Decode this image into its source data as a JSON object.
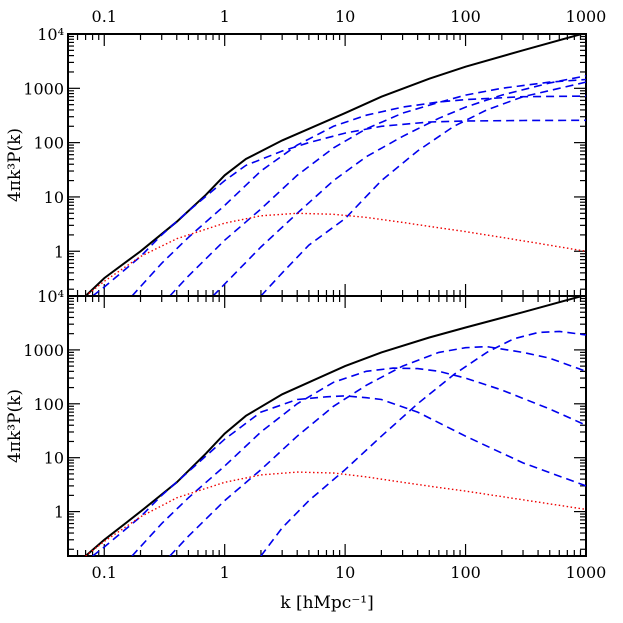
{
  "chart_data": {
    "type": "line",
    "x_scale": "log",
    "y_scale": "log",
    "xlabel": "k [hMpc⁻¹]",
    "xlim": [
      0.05,
      1000
    ],
    "x_tick_labels": [
      {
        "v": 0.1,
        "t": "0.1"
      },
      {
        "v": 1,
        "t": "1"
      },
      {
        "v": 10,
        "t": "10"
      },
      {
        "v": 100,
        "t": "100"
      },
      {
        "v": 1000,
        "t": "1000"
      }
    ],
    "colors": {
      "total": "#000000",
      "components": "#0000ee",
      "linear": "#ee0000"
    },
    "panels": [
      {
        "name": "top",
        "ylabel": "4πk³P(k)",
        "ylim": [
          0.15,
          10000
        ],
        "y_tick_labels": [
          {
            "v": 1,
            "t": "1"
          },
          {
            "v": 10,
            "t": "10"
          },
          {
            "v": 100,
            "t": "100"
          },
          {
            "v": 1000,
            "t": "1000"
          },
          {
            "v": 10000,
            "t": "10⁴"
          }
        ],
        "series": [
          {
            "style": "solid",
            "color": "#000000",
            "x": [
              0.07,
              0.1,
              0.2,
              0.4,
              0.7,
              1,
              1.5,
              3,
              5,
              10,
              20,
              50,
              100,
              300,
              1000
            ],
            "y": [
              0.15,
              0.32,
              1.0,
              3.5,
              11,
              25,
              50,
              110,
              180,
              350,
              700,
              1500,
              2500,
              5000,
              10500
            ]
          },
          {
            "style": "dashed",
            "color": "#0000ee",
            "x": [
              0.08,
              0.1,
              0.2,
              0.3,
              0.5,
              1,
              1.5,
              3,
              5,
              10,
              20,
              50,
              100,
              300,
              1000
            ],
            "y": [
              0.15,
              0.22,
              0.8,
              2.0,
              5.5,
              20,
              38,
              70,
              100,
              150,
              200,
              240,
              250,
              255,
              258
            ]
          },
          {
            "style": "dashed",
            "color": "#0000ee",
            "x": [
              0.17,
              0.3,
              0.5,
              1,
              2,
              4,
              8,
              15,
              30,
              60,
              100,
              300,
              1000
            ],
            "y": [
              0.15,
              0.6,
              1.8,
              7,
              30,
              90,
              200,
              320,
              450,
              560,
              620,
              700,
              720
            ]
          },
          {
            "style": "dashed",
            "color": "#0000ee",
            "x": [
              0.35,
              0.5,
              1,
              2,
              4,
              8,
              15,
              30,
              60,
              100,
              200,
              500,
              1000
            ],
            "y": [
              0.15,
              0.35,
              1.6,
              6,
              25,
              80,
              180,
              350,
              550,
              750,
              1000,
              1300,
              1450
            ]
          },
          {
            "style": "dashed",
            "color": "#0000ee",
            "x": [
              0.8,
              1,
              2,
              4,
              8,
              15,
              30,
              60,
              100,
              200,
              500,
              1000
            ],
            "y": [
              0.15,
              0.25,
              1.2,
              5,
              20,
              55,
              130,
              280,
              450,
              750,
              1250,
              1700
            ]
          },
          {
            "style": "dashed",
            "color": "#0000ee",
            "x": [
              2.0,
              3,
              5,
              10,
              20,
              40,
              80,
              150,
              300,
              600,
              1000
            ],
            "y": [
              0.15,
              0.4,
              1.3,
              4,
              20,
              70,
              200,
              400,
              700,
              1000,
              1300
            ]
          },
          {
            "style": "dotted",
            "color": "#ee0000",
            "x": [
              0.07,
              0.1,
              0.2,
              0.4,
              1,
              2,
              4,
              8,
              15,
              30,
              60,
              100,
              200,
              400,
              1000
            ],
            "y": [
              0.15,
              0.28,
              0.8,
              1.7,
              3.3,
              4.5,
              5.0,
              4.8,
              4.2,
              3.4,
              2.7,
              2.3,
              1.8,
              1.4,
              1.0
            ]
          }
        ]
      },
      {
        "name": "bottom",
        "ylabel": "4πk³P(k)",
        "ylim": [
          0.15,
          10000
        ],
        "y_tick_labels": [
          {
            "v": 1,
            "t": "1"
          },
          {
            "v": 10,
            "t": "10"
          },
          {
            "v": 100,
            "t": "100"
          },
          {
            "v": 1000,
            "t": "1000"
          },
          {
            "v": 10000,
            "t": "10⁴"
          }
        ],
        "series": [
          {
            "style": "solid",
            "color": "#000000",
            "x": [
              0.07,
              0.1,
              0.2,
              0.4,
              0.7,
              1,
              1.5,
              3,
              5,
              10,
              20,
              50,
              100,
              300,
              1000
            ],
            "y": [
              0.15,
              0.3,
              1.0,
              3.5,
              12,
              28,
              60,
              150,
              250,
              500,
              900,
              1700,
              2600,
              5000,
              10500
            ]
          },
          {
            "style": "dashed",
            "color": "#0000ee",
            "x": [
              0.08,
              0.1,
              0.2,
              0.3,
              0.5,
              1,
              2,
              4,
              7,
              10,
              15,
              20,
              40,
              100,
              300,
              1000
            ],
            "y": [
              0.15,
              0.22,
              0.8,
              2.0,
              5.5,
              22,
              70,
              120,
              135,
              140,
              130,
              120,
              70,
              25,
              8,
              3
            ]
          },
          {
            "style": "dashed",
            "color": "#0000ee",
            "x": [
              0.17,
              0.3,
              0.5,
              1,
              2,
              4,
              8,
              15,
              25,
              40,
              60,
              100,
              200,
              500,
              1000
            ],
            "y": [
              0.15,
              0.6,
              1.8,
              7,
              30,
              100,
              250,
              400,
              460,
              450,
              400,
              300,
              180,
              80,
              40
            ]
          },
          {
            "style": "dashed",
            "color": "#0000ee",
            "x": [
              0.35,
              0.5,
              1,
              2,
              4,
              8,
              15,
              30,
              60,
              100,
              150,
              300,
              500,
              1000
            ],
            "y": [
              0.15,
              0.35,
              1.6,
              6,
              25,
              90,
              220,
              500,
              900,
              1100,
              1150,
              900,
              700,
              400
            ]
          },
          {
            "style": "dashed",
            "color": "#0000ee",
            "x": [
              2.0,
              3,
              5,
              10,
              20,
              40,
              80,
              150,
              250,
              400,
              600,
              1000
            ],
            "y": [
              0.15,
              0.5,
              1.6,
              6,
              25,
              100,
              350,
              900,
              1600,
              2100,
              2200,
              1900
            ]
          },
          {
            "style": "dotted",
            "color": "#ee0000",
            "x": [
              0.07,
              0.1,
              0.2,
              0.4,
              1,
              2,
              4,
              8,
              15,
              30,
              60,
              100,
              200,
              400,
              1000
            ],
            "y": [
              0.15,
              0.28,
              0.8,
              1.8,
              3.5,
              4.8,
              5.4,
              5.2,
              4.4,
              3.5,
              2.8,
              2.4,
              1.9,
              1.5,
              1.1
            ]
          }
        ]
      }
    ]
  }
}
